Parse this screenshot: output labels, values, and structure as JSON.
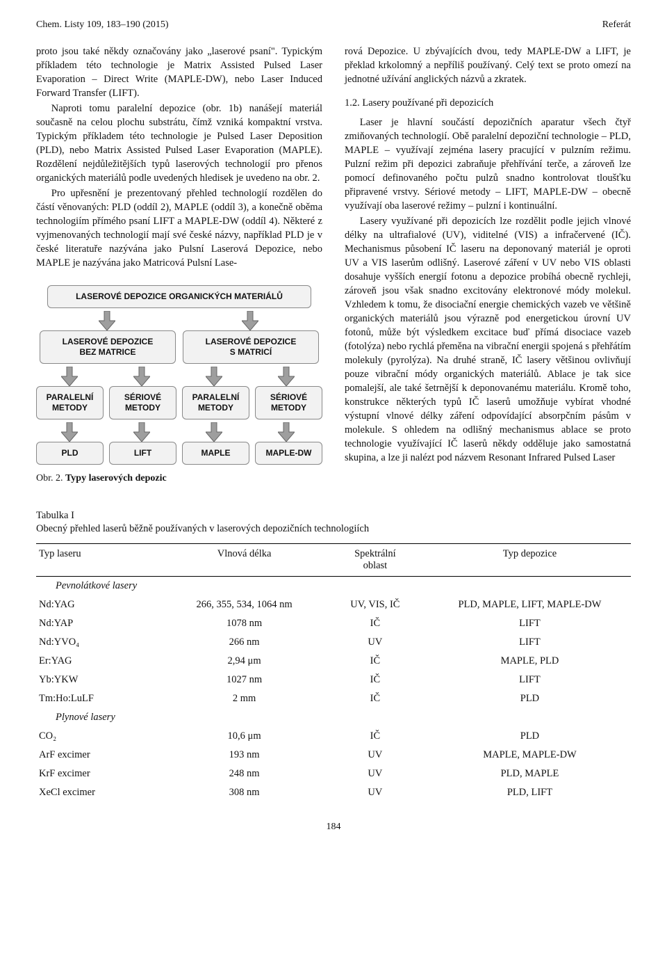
{
  "header": {
    "left": "Chem. Listy 109, 183–190 (2015)",
    "right": "Referát"
  },
  "left_col": {
    "p1": "proto jsou také někdy označovány jako „laserové psaní\". Typickým příkladem této technologie je Matrix Assisted Pulsed Laser Evaporation – Direct Write (MAPLE-DW), nebo Laser Induced Forward Transfer (LIFT).",
    "p2": "Naproti tomu paralelní depozice (obr. 1b) nanášejí materiál současně na celou plochu substrátu, čímž vzniká kompaktní vrstva. Typickým příkladem této technologie je Pulsed Laser Deposition (PLD), nebo Matrix Assisted Pulsed Laser Evaporation (MAPLE). Rozdělení nejdůležitějších typů laserových technologií pro přenos organických materiálů podle uvedených hledisek je uvedeno na obr. 2.",
    "p3": "Pro upřesnění je prezentovaný přehled technologií rozdělen do částí věnovaných: PLD (oddíl 2), MAPLE (oddíl 3), a konečně oběma technologiím přímého psaní LIFT a MAPLE-DW (oddíl 4). Některé z vyjmenovaných technologií mají své české názvy, například PLD je v české literatuře nazývána jako Pulsní Laserová Depozice, nebo MAPLE je nazývána jako Matricová Pulsní Lase-"
  },
  "right_col": {
    "p1": "rová Depozice. U zbývajících dvou, tedy MAPLE-DW a LIFT, je překlad krkolomný a nepříliš používaný. Celý text se proto omezí na jednotné užívání anglických názvů a zkratek.",
    "h1": "1.2. Lasery používané při depozicích",
    "p2": "Laser je hlavní součástí depozičních aparatur všech čtyř zmiňovaných technologií. Obě paralelní depoziční technologie – PLD, MAPLE – využívají zejména lasery pracující v pulzním režimu. Pulzní režim při depozici zabraňuje přehřívání terče, a zároveň lze pomocí definovaného počtu pulzů snadno kontrolovat tloušťku připravené vrstvy. Sériové metody – LIFT, MAPLE-DW – obecně využívají oba laserové režimy – pulzní i kontinuální.",
    "p3": "Lasery využívané při depozicích lze rozdělit podle jejich vlnové délky na ultrafialové (UV), viditelné (VIS) a infračervené (IČ). Mechanismus působení IČ laseru na deponovaný materiál je oproti UV a VIS laserům odlišný. Laserové záření v UV nebo VIS oblasti dosahuje vyšších energií fotonu a depozice probíhá obecně rychleji, zároveň jsou však snadno excitovány elektronové módy molekul. Vzhledem k tomu, že disociační energie chemických vazeb ve většině organických materiálů jsou výrazně pod energetickou úrovní UV fotonů, může být výsledkem excitace buď přímá disociace vazeb (fotolýza) nebo rychlá přeměna na vibrační energii spojená s přehřátím molekuly (pyrolýza). Na druhé straně, IČ lasery většinou ovlivňují pouze vibrační módy organických materiálů. Ablace je tak sice pomalejší, ale také šetrnější k deponovanému materiálu. Kromě toho, konstrukce některých typů IČ laserů umožňuje vybírat vhodné výstupní vlnové délky záření odpovídající absorpčním pásům v molekule. S ohledem na odlišný mechanismus ablace se proto technologie využívající IČ laserů někdy odděluje jako samostatná skupina, a lze ji nalézt pod názvem Resonant Infrared Pulsed Laser"
  },
  "flowchart": {
    "top": "LASEROVÉ DEPOZICE ORGANICKÝCH MATERIÁLŮ",
    "level2": [
      "LASEROVÉ DEPOZICE\nBEZ MATRICE",
      "LASEROVÉ DEPOZICE\nS MATRICÍ"
    ],
    "level3": [
      "PARALELNÍ\nMETODY",
      "SÉRIOVÉ\nMETODY",
      "PARALELNÍ\nMETODY",
      "SÉRIOVÉ\nMETODY"
    ],
    "level4": [
      "PLD",
      "LIFT",
      "MAPLE",
      "MAPLE-DW"
    ],
    "box_bg": "#f2f2f2",
    "box_border": "#888888",
    "arrow_fill": "#9e9e9e",
    "font": "Arial"
  },
  "fig_caption_prefix": "Obr. 2. ",
  "fig_caption_bold": "Typy laserových depozic",
  "table": {
    "title_line1": "Tabulka I",
    "title_line2": "Obecný přehled laserů běžně používaných v laserových depozičních technologiích",
    "columns": [
      "Typ laseru",
      "Vlnová délka",
      "Spektrální\noblast",
      "Typ depozice"
    ],
    "sections": [
      {
        "name": "Pevnolátkové lasery",
        "rows": [
          [
            "Nd:YAG",
            "266, 355, 534, 1064 nm",
            "UV, VIS, IČ",
            "PLD, MAPLE, LIFT, MAPLE-DW"
          ],
          [
            "Nd:YAP",
            "1078 nm",
            "IČ",
            "LIFT"
          ],
          [
            "Nd:YVO₄",
            "266 nm",
            "UV",
            "LIFT"
          ],
          [
            "Er:YAG",
            "2,94 μm",
            "IČ",
            "MAPLE, PLD"
          ],
          [
            "Yb:YKW",
            "1027 nm",
            "IČ",
            "LIFT"
          ],
          [
            "Tm:Ho:LuLF",
            "2 mm",
            "IČ",
            "PLD"
          ]
        ]
      },
      {
        "name": "Plynové lasery",
        "rows": [
          [
            "CO₂",
            "10,6 μm",
            "IČ",
            "PLD"
          ],
          [
            "ArF excimer",
            "193 nm",
            "UV",
            "MAPLE, MAPLE-DW"
          ],
          [
            "KrF excimer",
            "248 nm",
            "UV",
            "PLD, MAPLE"
          ],
          [
            "XeCl excimer",
            "308 nm",
            "UV",
            "PLD, LIFT"
          ]
        ]
      }
    ]
  },
  "page_number": "184"
}
